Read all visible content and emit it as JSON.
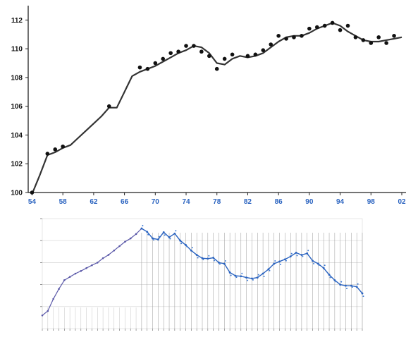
{
  "chart_data": [
    {
      "type": "line",
      "title": "",
      "xlabel": "",
      "ylabel": "",
      "xlim": [
        53.5,
        102
      ],
      "ylim": [
        100,
        113
      ],
      "x_ticks": [
        "54",
        "58",
        "62",
        "66",
        "70",
        "74",
        "78",
        "82",
        "86",
        "90",
        "94",
        "98",
        "02"
      ],
      "y_ticks": [
        "100",
        "102",
        "104",
        "106",
        "108",
        "110",
        "112"
      ],
      "series": [
        {
          "style": "line",
          "color": "#333333",
          "x": [
            54,
            55,
            56,
            57,
            58,
            59,
            60,
            61,
            62,
            63,
            64,
            65,
            66,
            67,
            68,
            69,
            70,
            71,
            72,
            73,
            74,
            75,
            76,
            77,
            78,
            79,
            80,
            81,
            82,
            83,
            84,
            85,
            86,
            87,
            88,
            89,
            90,
            91,
            92,
            93,
            94,
            95,
            96,
            97,
            98,
            99,
            100,
            101,
            102
          ],
          "y": [
            99.9,
            101.2,
            102.6,
            102.8,
            103.1,
            103.3,
            103.8,
            104.3,
            104.8,
            105.3,
            105.9,
            105.9,
            107.0,
            108.1,
            108.4,
            108.6,
            108.8,
            109.1,
            109.4,
            109.7,
            109.9,
            110.2,
            110.1,
            109.7,
            109.0,
            108.9,
            109.3,
            109.5,
            109.4,
            109.5,
            109.7,
            110.1,
            110.5,
            110.8,
            110.9,
            110.9,
            111.1,
            111.4,
            111.6,
            111.8,
            111.6,
            111.2,
            110.9,
            110.6,
            110.5,
            110.5,
            110.6,
            110.7,
            110.8
          ]
        },
        {
          "style": "markers",
          "color": "#111111",
          "x": [
            54,
            56,
            57,
            58,
            64,
            68,
            69,
            70,
            71,
            72,
            73,
            74,
            75,
            76,
            77,
            78,
            79,
            80,
            82,
            83,
            84,
            85,
            86,
            87,
            88,
            89,
            90,
            91,
            92,
            93,
            94,
            95,
            96,
            97,
            98,
            99,
            100,
            101
          ],
          "y": [
            100.0,
            102.7,
            103.0,
            103.2,
            106.0,
            108.7,
            108.6,
            109.0,
            109.3,
            109.7,
            109.8,
            110.2,
            110.2,
            109.8,
            109.5,
            108.6,
            109.3,
            109.6,
            109.5,
            109.6,
            109.9,
            110.3,
            110.9,
            110.7,
            110.8,
            110.9,
            111.4,
            111.5,
            111.6,
            111.8,
            111.3,
            111.6,
            110.8,
            110.6,
            110.4,
            110.8,
            110.4,
            110.9
          ]
        }
      ]
    },
    {
      "type": "line",
      "title": "",
      "xlabel": "",
      "ylabel": "",
      "y_ticks": [
        "",
        "",
        "",
        "",
        ""
      ],
      "grid": true,
      "series": [
        {
          "style": "line",
          "color": "#5a58a8",
          "values": [
            0.6,
            0.8,
            1.35,
            1.8,
            2.2,
            2.35,
            2.5,
            2.62,
            2.75,
            2.88,
            3.0,
            3.2,
            3.35,
            3.55,
            3.75,
            3.95,
            4.1,
            4.3,
            4.55
          ]
        },
        {
          "style": "line",
          "color": "#2a63c0",
          "values": [
            4.55,
            4.4,
            4.1,
            4.05,
            4.38,
            4.15,
            4.32,
            4.0,
            3.8,
            3.55,
            3.35,
            3.2,
            3.18,
            3.22,
            3.0,
            2.95,
            2.55,
            2.4,
            2.38,
            2.32,
            2.28,
            2.32,
            2.5,
            2.7,
            2.95,
            3.05,
            3.15,
            3.28,
            3.45,
            3.35,
            3.42,
            3.08,
            2.95,
            2.75,
            2.45,
            2.2,
            2.0,
            1.95,
            1.95,
            1.9,
            1.6
          ]
        }
      ]
    }
  ]
}
